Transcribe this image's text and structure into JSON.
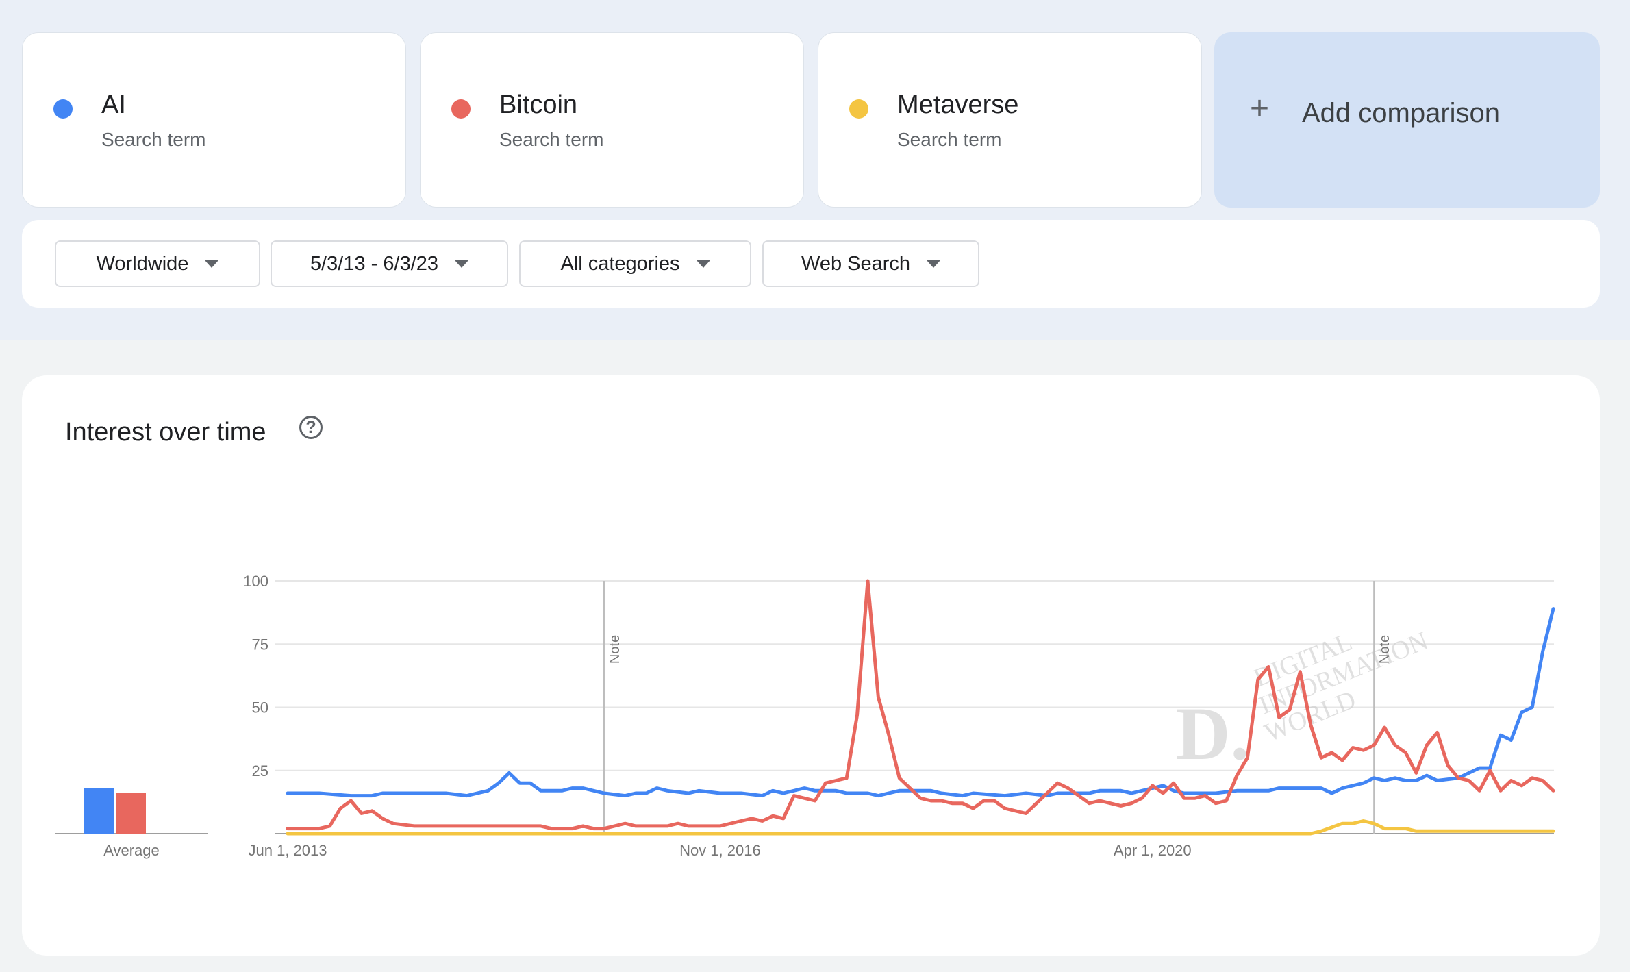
{
  "terms": [
    {
      "name": "AI",
      "sub": "Search term",
      "color": "#4285f4"
    },
    {
      "name": "Bitcoin",
      "sub": "Search term",
      "color": "#e8675e"
    },
    {
      "name": "Metaverse",
      "sub": "Search term",
      "color": "#f4c542"
    }
  ],
  "add_comparison": {
    "label": "Add comparison",
    "icon": "plus-icon"
  },
  "filters": [
    {
      "label": "Worldwide",
      "icon": "caret-down-icon"
    },
    {
      "label": "5/3/13 - 6/3/23",
      "icon": "caret-down-icon"
    },
    {
      "label": "All categories",
      "icon": "caret-down-icon"
    },
    {
      "label": "Web Search",
      "icon": "caret-down-icon"
    }
  ],
  "chart": {
    "title": "Interest over time",
    "help_icon": "help-circle-icon",
    "average_label": "Average",
    "note_label": "Note",
    "watermark": {
      "letter": "D.",
      "lines": [
        "DIGITAL",
        "INFORMATION",
        "WORLD"
      ]
    }
  },
  "chart_data": {
    "type": "line",
    "ylim": [
      0,
      100
    ],
    "yticks": [
      25,
      50,
      75,
      100
    ],
    "x_start": "Jun 1, 2013",
    "x_end": "Jun 3, 2023",
    "xtick_labels": [
      "Jun 1, 2013",
      "Nov 1, 2016",
      "Apr 1, 2020"
    ],
    "notes_at": [
      "Dec 1, 2015",
      "Jan 1, 2022"
    ],
    "grid": true,
    "averages": [
      {
        "name": "AI",
        "value": 18
      },
      {
        "name": "Bitcoin",
        "value": 16
      }
    ],
    "series": [
      {
        "name": "AI",
        "color": "#4285f4",
        "points": [
          [
            "2013-06",
            16
          ],
          [
            "2013-09",
            16
          ],
          [
            "2013-12",
            15
          ],
          [
            "2014-02",
            15
          ],
          [
            "2014-03",
            16
          ],
          [
            "2014-06",
            16
          ],
          [
            "2014-09",
            16
          ],
          [
            "2014-11",
            15
          ],
          [
            "2015-01",
            17
          ],
          [
            "2015-02",
            20
          ],
          [
            "2015-03",
            24
          ],
          [
            "2015-04",
            20
          ],
          [
            "2015-05",
            20
          ],
          [
            "2015-06",
            17
          ],
          [
            "2015-08",
            17
          ],
          [
            "2015-09",
            18
          ],
          [
            "2015-10",
            18
          ],
          [
            "2015-12",
            16
          ],
          [
            "2016-02",
            15
          ],
          [
            "2016-03",
            16
          ],
          [
            "2016-04",
            16
          ],
          [
            "2016-05",
            18
          ],
          [
            "2016-06",
            17
          ],
          [
            "2016-08",
            16
          ],
          [
            "2016-09",
            17
          ],
          [
            "2016-11",
            16
          ],
          [
            "2017-01",
            16
          ],
          [
            "2017-03",
            15
          ],
          [
            "2017-04",
            17
          ],
          [
            "2017-05",
            16
          ],
          [
            "2017-07",
            18
          ],
          [
            "2017-08",
            17
          ],
          [
            "2017-10",
            17
          ],
          [
            "2017-11",
            16
          ],
          [
            "2018-01",
            16
          ],
          [
            "2018-02",
            15
          ],
          [
            "2018-04",
            17
          ],
          [
            "2018-07",
            17
          ],
          [
            "2018-08",
            16
          ],
          [
            "2018-10",
            15
          ],
          [
            "2018-11",
            16
          ],
          [
            "2019-02",
            15
          ],
          [
            "2019-04",
            16
          ],
          [
            "2019-06",
            15
          ],
          [
            "2019-07",
            16
          ],
          [
            "2019-10",
            16
          ],
          [
            "2019-11",
            17
          ],
          [
            "2020-01",
            17
          ],
          [
            "2020-02",
            16
          ],
          [
            "2020-04",
            18
          ],
          [
            "2020-05",
            19
          ],
          [
            "2020-06",
            17
          ],
          [
            "2020-07",
            16
          ],
          [
            "2020-10",
            16
          ],
          [
            "2020-12",
            17
          ],
          [
            "2021-03",
            17
          ],
          [
            "2021-04",
            18
          ],
          [
            "2021-07",
            18
          ],
          [
            "2021-08",
            18
          ],
          [
            "2021-09",
            16
          ],
          [
            "2021-10",
            18
          ],
          [
            "2021-12",
            20
          ],
          [
            "2022-01",
            22
          ],
          [
            "2022-02",
            21
          ],
          [
            "2022-03",
            22
          ],
          [
            "2022-04",
            21
          ],
          [
            "2022-05",
            21
          ],
          [
            "2022-06",
            23
          ],
          [
            "2022-07",
            21
          ],
          [
            "2022-09",
            22
          ],
          [
            "2022-10",
            24
          ],
          [
            "2022-11",
            26
          ],
          [
            "2022-12",
            26
          ],
          [
            "2023-01",
            39
          ],
          [
            "2023-02",
            37
          ],
          [
            "2023-03",
            48
          ],
          [
            "2023-04",
            50
          ],
          [
            "2023-05",
            72
          ],
          [
            "2023-06",
            89
          ]
        ]
      },
      {
        "name": "Bitcoin",
        "color": "#e8675e",
        "points": [
          [
            "2013-06",
            2
          ],
          [
            "2013-08",
            2
          ],
          [
            "2013-09",
            2
          ],
          [
            "2013-10",
            3
          ],
          [
            "2013-11",
            10
          ],
          [
            "2013-12",
            13
          ],
          [
            "2014-01",
            8
          ],
          [
            "2014-02",
            9
          ],
          [
            "2014-03",
            6
          ],
          [
            "2014-04",
            4
          ],
          [
            "2014-06",
            3
          ],
          [
            "2014-09",
            3
          ],
          [
            "2015-01",
            3
          ],
          [
            "2015-06",
            3
          ],
          [
            "2015-07",
            2
          ],
          [
            "2015-09",
            2
          ],
          [
            "2015-10",
            3
          ],
          [
            "2015-11",
            2
          ],
          [
            "2015-12",
            2
          ],
          [
            "2016-01",
            3
          ],
          [
            "2016-02",
            4
          ],
          [
            "2016-03",
            3
          ],
          [
            "2016-06",
            3
          ],
          [
            "2016-07",
            4
          ],
          [
            "2016-08",
            3
          ],
          [
            "2016-11",
            3
          ],
          [
            "2016-12",
            4
          ],
          [
            "2017-01",
            5
          ],
          [
            "2017-02",
            6
          ],
          [
            "2017-03",
            5
          ],
          [
            "2017-04",
            7
          ],
          [
            "2017-05",
            6
          ],
          [
            "2017-06",
            15
          ],
          [
            "2017-07",
            14
          ],
          [
            "2017-08",
            13
          ],
          [
            "2017-09",
            20
          ],
          [
            "2017-10",
            21
          ],
          [
            "2017-11",
            22
          ],
          [
            "2017-12",
            47
          ],
          [
            "2018-01",
            100
          ],
          [
            "2018-02",
            54
          ],
          [
            "2018-03",
            39
          ],
          [
            "2018-04",
            22
          ],
          [
            "2018-05",
            18
          ],
          [
            "2018-06",
            14
          ],
          [
            "2018-07",
            13
          ],
          [
            "2018-08",
            13
          ],
          [
            "2018-09",
            12
          ],
          [
            "2018-10",
            12
          ],
          [
            "2018-11",
            10
          ],
          [
            "2018-12",
            13
          ],
          [
            "2019-01",
            13
          ],
          [
            "2019-02",
            10
          ],
          [
            "2019-03",
            9
          ],
          [
            "2019-04",
            8
          ],
          [
            "2019-05",
            12
          ],
          [
            "2019-06",
            16
          ],
          [
            "2019-07",
            20
          ],
          [
            "2019-08",
            18
          ],
          [
            "2019-09",
            15
          ],
          [
            "2019-10",
            12
          ],
          [
            "2019-11",
            13
          ],
          [
            "2019-12",
            12
          ],
          [
            "2020-01",
            11
          ],
          [
            "2020-02",
            12
          ],
          [
            "2020-03",
            14
          ],
          [
            "2020-04",
            19
          ],
          [
            "2020-05",
            16
          ],
          [
            "2020-06",
            20
          ],
          [
            "2020-07",
            14
          ],
          [
            "2020-08",
            14
          ],
          [
            "2020-09",
            15
          ],
          [
            "2020-10",
            12
          ],
          [
            "2020-11",
            13
          ],
          [
            "2020-12",
            23
          ],
          [
            "2021-01",
            30
          ],
          [
            "2021-02",
            61
          ],
          [
            "2021-03",
            66
          ],
          [
            "2021-04",
            46
          ],
          [
            "2021-05",
            49
          ],
          [
            "2021-06",
            64
          ],
          [
            "2021-07",
            43
          ],
          [
            "2021-08",
            30
          ],
          [
            "2021-09",
            32
          ],
          [
            "2021-10",
            29
          ],
          [
            "2021-11",
            34
          ],
          [
            "2021-12",
            33
          ],
          [
            "2022-01",
            35
          ],
          [
            "2022-02",
            42
          ],
          [
            "2022-03",
            35
          ],
          [
            "2022-04",
            32
          ],
          [
            "2022-05",
            24
          ],
          [
            "2022-06",
            35
          ],
          [
            "2022-07",
            40
          ],
          [
            "2022-08",
            27
          ],
          [
            "2022-09",
            22
          ],
          [
            "2022-10",
            21
          ],
          [
            "2022-11",
            17
          ],
          [
            "2022-12",
            25
          ],
          [
            "2023-01",
            17
          ],
          [
            "2023-02",
            21
          ],
          [
            "2023-03",
            19
          ],
          [
            "2023-04",
            22
          ],
          [
            "2023-05",
            21
          ],
          [
            "2023-06",
            17
          ]
        ]
      },
      {
        "name": "Metaverse",
        "color": "#f4c542",
        "points": [
          [
            "2013-06",
            0
          ],
          [
            "2021-07",
            0
          ],
          [
            "2021-08",
            1
          ],
          [
            "2021-10",
            4
          ],
          [
            "2021-11",
            4
          ],
          [
            "2021-12",
            5
          ],
          [
            "2022-01",
            4
          ],
          [
            "2022-02",
            2
          ],
          [
            "2022-04",
            2
          ],
          [
            "2022-05",
            1
          ],
          [
            "2022-08",
            1
          ],
          [
            "2023-06",
            1
          ]
        ]
      }
    ]
  }
}
